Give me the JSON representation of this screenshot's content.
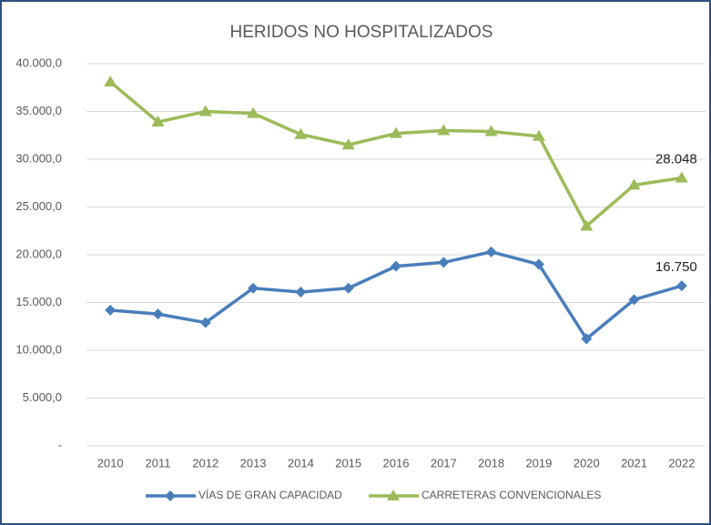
{
  "chart_data": {
    "type": "line",
    "title": "HERIDOS NO HOSPITALIZADOS",
    "categories": [
      "2010",
      "2011",
      "2012",
      "2013",
      "2014",
      "2015",
      "2016",
      "2017",
      "2018",
      "2019",
      "2020",
      "2021",
      "2022"
    ],
    "series": [
      {
        "name": "VÍAS DE GRAN CAPACIDAD",
        "color": "#4a7ebb",
        "marker": "diamond",
        "values": [
          14200,
          13800,
          12900,
          16500,
          16100,
          16500,
          18800,
          19200,
          20300,
          19000,
          11200,
          15300,
          16750
        ],
        "value_labels": [
          null,
          null,
          null,
          null,
          null,
          null,
          null,
          null,
          null,
          null,
          null,
          null,
          "16.750"
        ]
      },
      {
        "name": "CARRETERAS CONVENCIONALES",
        "color": "#9bbb59",
        "marker": "triangle",
        "values": [
          38100,
          33900,
          35000,
          34800,
          32600,
          31500,
          32700,
          33000,
          32900,
          32400,
          23000,
          27300,
          28048
        ],
        "value_labels": [
          null,
          null,
          null,
          null,
          null,
          null,
          null,
          null,
          null,
          null,
          null,
          null,
          "28.048"
        ]
      }
    ],
    "ylim": [
      0,
      40000
    ],
    "yticks": [
      {
        "value": 0,
        "label": "-"
      },
      {
        "value": 5000,
        "label": "5.000,0"
      },
      {
        "value": 10000,
        "label": "10.000,0"
      },
      {
        "value": 15000,
        "label": "15.000,0"
      },
      {
        "value": 20000,
        "label": "20.000,0"
      },
      {
        "value": 25000,
        "label": "25.000,0"
      },
      {
        "value": 30000,
        "label": "30.000,0"
      },
      {
        "value": 35000,
        "label": "35.000,0"
      },
      {
        "value": 40000,
        "label": "40.000,0"
      }
    ],
    "grid": true,
    "legend": "bottom"
  }
}
